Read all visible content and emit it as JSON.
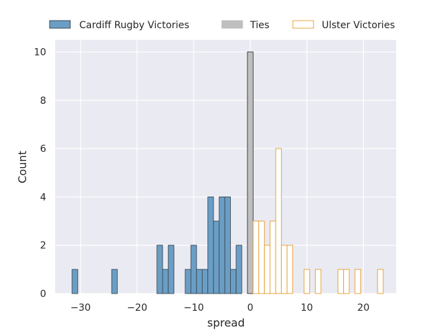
{
  "chart_data": {
    "type": "bar",
    "title": "",
    "xlabel": "spread",
    "ylabel": "Count",
    "xlim": [
      -34.5,
      25.8
    ],
    "ylim": [
      0,
      10.5
    ],
    "xticks": [
      -30,
      -20,
      -10,
      0,
      10,
      20
    ],
    "xtick_labels": [
      "−30",
      "−20",
      "−10",
      "0",
      "10",
      "20"
    ],
    "yticks": [
      0,
      2,
      4,
      6,
      8,
      10
    ],
    "ytick_labels": [
      "0",
      "2",
      "4",
      "6",
      "8",
      "10"
    ],
    "grid": true,
    "legend_position": "top-center",
    "bin_width": 1,
    "series": [
      {
        "name": "Cardiff Rugby Victories",
        "style": "filled",
        "color": "#6a9ec5",
        "edgecolor": "#3d4a55",
        "bins": [
          {
            "x": -31,
            "count": 1
          },
          {
            "x": -24,
            "count": 1
          },
          {
            "x": -16,
            "count": 2
          },
          {
            "x": -15,
            "count": 1
          },
          {
            "x": -14,
            "count": 2
          },
          {
            "x": -11,
            "count": 1
          },
          {
            "x": -10,
            "count": 2
          },
          {
            "x": -9,
            "count": 1
          },
          {
            "x": -8,
            "count": 1
          },
          {
            "x": -7,
            "count": 4
          },
          {
            "x": -6,
            "count": 3
          },
          {
            "x": -5,
            "count": 4
          },
          {
            "x": -4,
            "count": 4
          },
          {
            "x": -3,
            "count": 1
          },
          {
            "x": -2,
            "count": 2
          }
        ]
      },
      {
        "name": "Ties",
        "style": "filled",
        "color": "#bfbfbf",
        "edgecolor": "#333333",
        "bins": [
          {
            "x": 0,
            "count": 10
          }
        ]
      },
      {
        "name": "Ulster Victories",
        "style": "outline",
        "color": "#ffffff",
        "edgecolor": "#e8a33d",
        "bins": [
          {
            "x": 1,
            "count": 3
          },
          {
            "x": 2,
            "count": 3
          },
          {
            "x": 3,
            "count": 2
          },
          {
            "x": 4,
            "count": 3
          },
          {
            "x": 5,
            "count": 6
          },
          {
            "x": 6,
            "count": 2
          },
          {
            "x": 7,
            "count": 2
          },
          {
            "x": 10,
            "count": 1
          },
          {
            "x": 12,
            "count": 1
          },
          {
            "x": 16,
            "count": 1
          },
          {
            "x": 17,
            "count": 1
          },
          {
            "x": 19,
            "count": 1
          },
          {
            "x": 23,
            "count": 1
          }
        ]
      }
    ]
  }
}
